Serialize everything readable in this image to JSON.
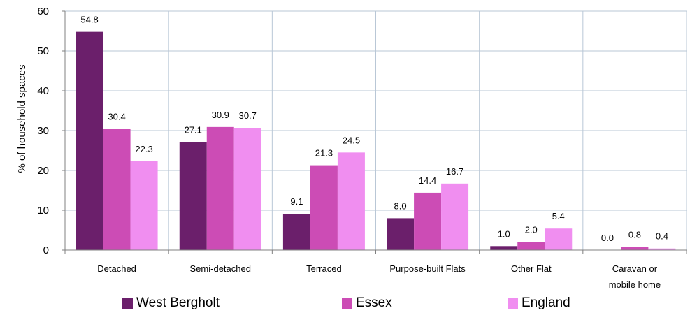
{
  "chart_data": {
    "type": "bar",
    "categories": [
      "Detached",
      "Semi-detached",
      "Terraced",
      "Purpose-built Flats",
      "Other Flat",
      "Caravan or mobile home"
    ],
    "series": [
      {
        "name": "West Bergholt",
        "color": "#6b1f6b",
        "values": [
          54.8,
          27.1,
          9.1,
          8.0,
          1.0,
          0.0
        ],
        "labels": [
          "54.8",
          "27.1",
          "9.1",
          "8.0",
          "1.0",
          "0.0"
        ]
      },
      {
        "name": "Essex",
        "color": "#cc4cb5",
        "values": [
          30.4,
          30.9,
          21.3,
          14.4,
          2.0,
          0.8
        ],
        "labels": [
          "30.4",
          "30.9",
          "21.3",
          "14.4",
          "2.0",
          "0.8"
        ]
      },
      {
        "name": "England",
        "color": "#f08ef0",
        "values": [
          22.3,
          30.7,
          24.5,
          16.7,
          5.4,
          0.4
        ],
        "labels": [
          "22.3",
          "30.7",
          "24.5",
          "16.7",
          "5.4",
          "0.4"
        ]
      }
    ],
    "ylabel": "% of household spaces",
    "xlabel": "",
    "ylim": [
      0,
      60
    ],
    "yticks": [
      0,
      10,
      20,
      30,
      40,
      50,
      60
    ],
    "grid": true,
    "legend_position": "bottom"
  }
}
